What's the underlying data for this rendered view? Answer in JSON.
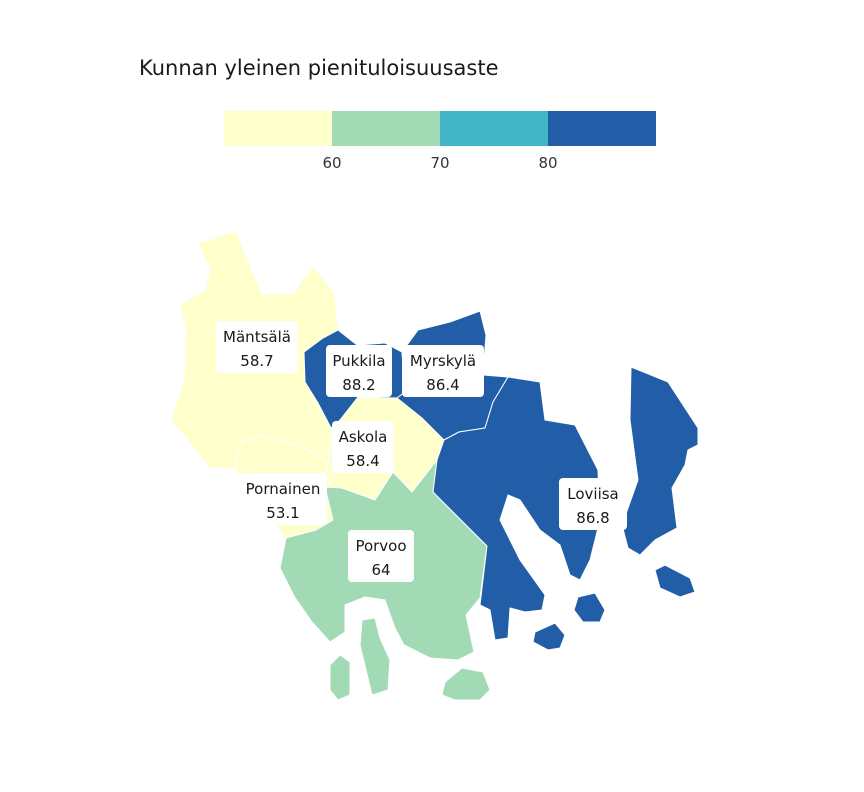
{
  "title": "Kunnan yleinen pienituloisuusaste",
  "legend": {
    "bins": [
      {
        "color": "#ffffcc"
      },
      {
        "color": "#a1dab4"
      },
      {
        "color": "#41b6c4"
      },
      {
        "color": "#225ea8"
      }
    ],
    "ticks": [
      "60",
      "70",
      "80"
    ]
  },
  "municipalities": [
    {
      "name": "Mäntsälä",
      "value": "58.7",
      "color": "#ffffcc"
    },
    {
      "name": "Pukkila",
      "value": "88.2",
      "color": "#225ea8"
    },
    {
      "name": "Myrskylä",
      "value": "86.4",
      "color": "#225ea8"
    },
    {
      "name": "Askola",
      "value": "58.4",
      "color": "#ffffcc"
    },
    {
      "name": "Pornainen",
      "value": "53.1",
      "color": "#ffffcc"
    },
    {
      "name": "Porvoo",
      "value": "64",
      "color": "#a1dab4"
    },
    {
      "name": "Loviisa",
      "value": "86.8",
      "color": "#225ea8"
    }
  ]
}
